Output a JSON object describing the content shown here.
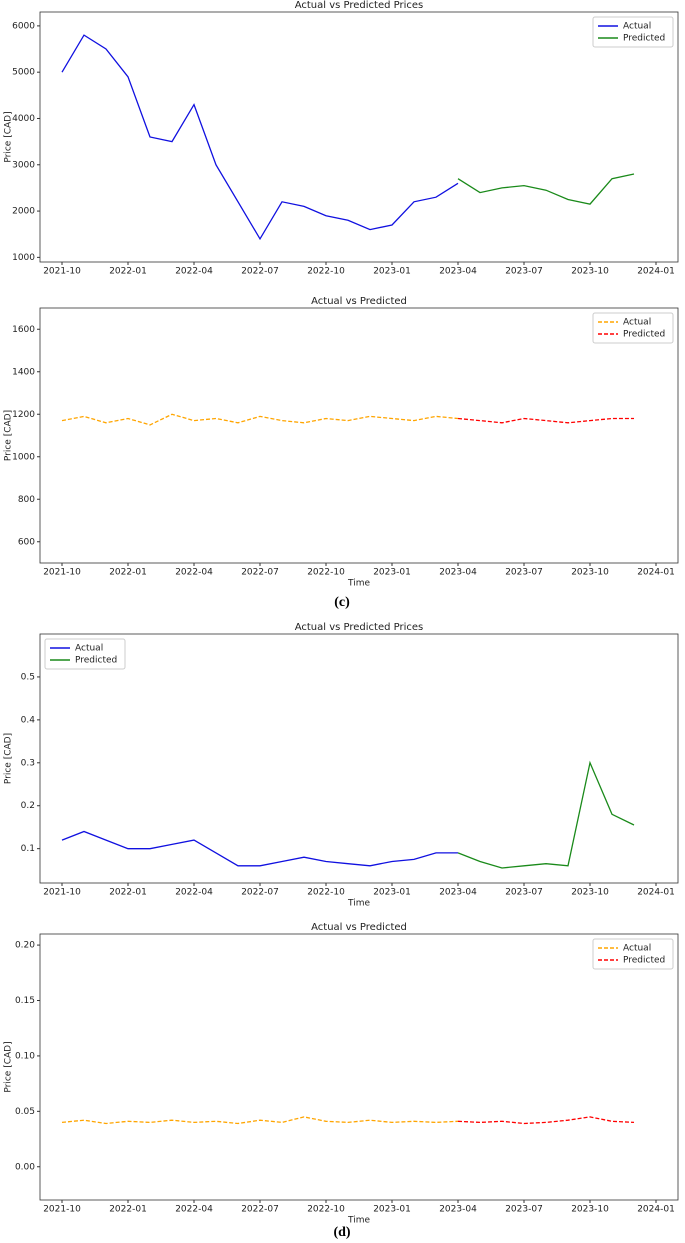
{
  "chart_data": [
    {
      "type": "line",
      "title": "Actual vs Predicted Prices",
      "y_label": "Price [CAD]",
      "xlim": [
        "2021-09",
        "2024-02"
      ],
      "xticks": [
        "2021-10",
        "2022-01",
        "2022-04",
        "2022-07",
        "2022-10",
        "2023-01",
        "2023-04",
        "2023-07",
        "2023-10",
        "2024-01"
      ],
      "ylim": [
        900,
        6300
      ],
      "yticks": [
        1000,
        2000,
        3000,
        4000,
        5000,
        6000
      ],
      "legend": "upper right",
      "series": [
        {
          "name": "Actual",
          "color": "#1010e0",
          "linestyle": "solid",
          "x": [
            "2021-10",
            "2021-11",
            "2021-12",
            "2022-01",
            "2022-02",
            "2022-03",
            "2022-04",
            "2022-05",
            "2022-06",
            "2022-07",
            "2022-08",
            "2022-09",
            "2022-10",
            "2022-11",
            "2022-12",
            "2023-01",
            "2023-02",
            "2023-03",
            "2023-04"
          ],
          "values": [
            5000,
            5800,
            5500,
            4900,
            3600,
            3500,
            4300,
            3000,
            2200,
            1400,
            2200,
            2100,
            1900,
            1800,
            1600,
            1700,
            2200,
            2300,
            2600
          ]
        },
        {
          "name": "Predicted",
          "color": "#1a8a1a",
          "linestyle": "solid",
          "x": [
            "2023-04",
            "2023-05",
            "2023-06",
            "2023-07",
            "2023-08",
            "2023-09",
            "2023-10",
            "2023-11",
            "2023-12"
          ],
          "values": [
            2700,
            2400,
            2500,
            2550,
            2450,
            2250,
            2150,
            2700,
            2800
          ]
        }
      ]
    },
    {
      "type": "line",
      "title": "Actual vs Predicted",
      "y_label": "Price [CAD]",
      "x_label": "Time",
      "xlim": [
        "2021-09",
        "2024-02"
      ],
      "xticks": [
        "2021-10",
        "2022-01",
        "2022-04",
        "2022-07",
        "2022-10",
        "2023-01",
        "2023-04",
        "2023-07",
        "2023-10",
        "2024-01"
      ],
      "ylim": [
        500,
        1700
      ],
      "yticks": [
        600,
        800,
        1000,
        1200,
        1400,
        1600
      ],
      "legend": "upper right",
      "series": [
        {
          "name": "Actual",
          "color": "#ffa500",
          "linestyle": "dashed",
          "x": [
            "2021-10",
            "2021-11",
            "2021-12",
            "2022-01",
            "2022-02",
            "2022-03",
            "2022-04",
            "2022-05",
            "2022-06",
            "2022-07",
            "2022-08",
            "2022-09",
            "2022-10",
            "2022-11",
            "2022-12",
            "2023-01",
            "2023-02",
            "2023-03",
            "2023-04"
          ],
          "values": [
            1170,
            1190,
            1160,
            1180,
            1150,
            1200,
            1170,
            1180,
            1160,
            1190,
            1170,
            1160,
            1180,
            1170,
            1190,
            1180,
            1170,
            1190,
            1180
          ]
        },
        {
          "name": "Predicted",
          "color": "#ff0000",
          "linestyle": "dashed",
          "x": [
            "2023-04",
            "2023-05",
            "2023-06",
            "2023-07",
            "2023-08",
            "2023-09",
            "2023-10",
            "2023-11",
            "2023-12"
          ],
          "values": [
            1180,
            1170,
            1160,
            1180,
            1170,
            1160,
            1170,
            1180,
            1180
          ]
        }
      ]
    },
    {
      "type": "line",
      "title": "Actual vs Predicted Prices",
      "y_label": "Price [CAD]",
      "x_label": "Time",
      "xlim": [
        "2021-09",
        "2024-02"
      ],
      "xticks": [
        "2021-10",
        "2022-01",
        "2022-04",
        "2022-07",
        "2022-10",
        "2023-01",
        "2023-04",
        "2023-07",
        "2023-10",
        "2024-01"
      ],
      "ylim": [
        0.02,
        0.6
      ],
      "yticks": [
        0.1,
        0.2,
        0.3,
        0.4,
        0.5
      ],
      "legend": "upper left",
      "series": [
        {
          "name": "Actual",
          "color": "#1010e0",
          "linestyle": "solid",
          "x": [
            "2021-10",
            "2021-11",
            "2021-12",
            "2022-01",
            "2022-02",
            "2022-03",
            "2022-04",
            "2022-05",
            "2022-06",
            "2022-07",
            "2022-08",
            "2022-09",
            "2022-10",
            "2022-11",
            "2022-12",
            "2023-01",
            "2023-02",
            "2023-03",
            "2023-04"
          ],
          "values": [
            0.12,
            0.14,
            0.12,
            0.1,
            0.1,
            0.11,
            0.12,
            0.09,
            0.06,
            0.06,
            0.07,
            0.08,
            0.07,
            0.065,
            0.06,
            0.07,
            0.075,
            0.09,
            0.09
          ]
        },
        {
          "name": "Predicted",
          "color": "#1a8a1a",
          "linestyle": "solid",
          "x": [
            "2023-04",
            "2023-05",
            "2023-06",
            "2023-07",
            "2023-08",
            "2023-09",
            "2023-10",
            "2023-11",
            "2023-12"
          ],
          "values": [
            0.09,
            0.07,
            0.055,
            0.06,
            0.065,
            0.06,
            0.3,
            0.18,
            0.155
          ]
        }
      ]
    },
    {
      "type": "line",
      "title": "Actual vs Predicted",
      "y_label": "Price [CAD]",
      "x_label": "Time",
      "xlim": [
        "2021-09",
        "2024-02"
      ],
      "xticks": [
        "2021-10",
        "2022-01",
        "2022-04",
        "2022-07",
        "2022-10",
        "2023-01",
        "2023-04",
        "2023-07",
        "2023-10",
        "2024-01"
      ],
      "ylim": [
        -0.03,
        0.21
      ],
      "yticks": [
        {
          "value": 0,
          "label": "0.00"
        },
        {
          "value": 0.05,
          "label": "0.05"
        },
        {
          "value": 0.1,
          "label": "0.10"
        },
        {
          "value": 0.15,
          "label": "0.15"
        },
        {
          "value": 0.2,
          "label": "0.20"
        }
      ],
      "legend": "upper right",
      "series": [
        {
          "name": "Actual",
          "color": "#ffa500",
          "linestyle": "dashed",
          "x": [
            "2021-10",
            "2021-11",
            "2021-12",
            "2022-01",
            "2022-02",
            "2022-03",
            "2022-04",
            "2022-05",
            "2022-06",
            "2022-07",
            "2022-08",
            "2022-09",
            "2022-10",
            "2022-11",
            "2022-12",
            "2023-01",
            "2023-02",
            "2023-03",
            "2023-04"
          ],
          "values": [
            0.04,
            0.042,
            0.039,
            0.041,
            0.04,
            0.042,
            0.04,
            0.041,
            0.039,
            0.042,
            0.04,
            0.045,
            0.041,
            0.04,
            0.042,
            0.04,
            0.041,
            0.04,
            0.041
          ]
        },
        {
          "name": "Predicted",
          "color": "#ff0000",
          "linestyle": "dashed",
          "x": [
            "2023-04",
            "2023-05",
            "2023-06",
            "2023-07",
            "2023-08",
            "2023-09",
            "2023-10",
            "2023-11",
            "2023-12"
          ],
          "values": [
            0.041,
            0.04,
            0.041,
            0.039,
            0.04,
            0.042,
            0.045,
            0.041,
            0.04
          ]
        }
      ]
    }
  ],
  "captions": [
    "(c)",
    "(d)"
  ]
}
